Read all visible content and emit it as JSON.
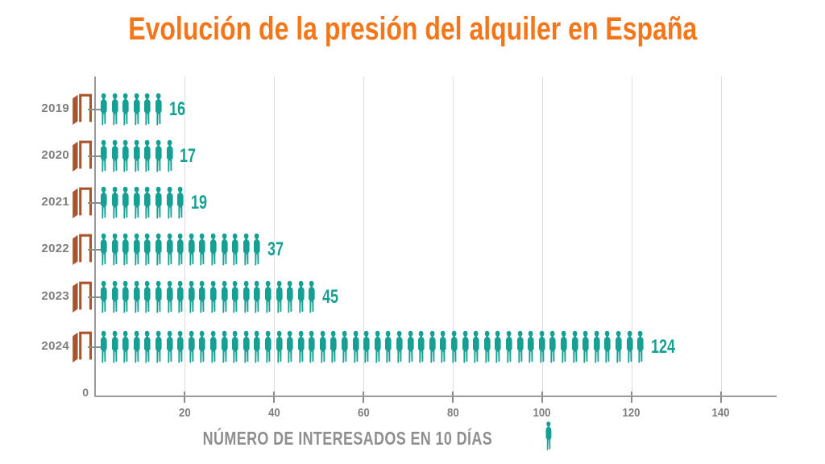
{
  "title": "Evolución de la presión del alquiler en España",
  "chart_data": {
    "type": "bar",
    "subtype": "pictogram_bar_horizontal",
    "title": "Evolución de la presión del alquiler en España",
    "categories": [
      "2019",
      "2020",
      "2021",
      "2022",
      "2023",
      "2024"
    ],
    "values": [
      16,
      17,
      19,
      37,
      45,
      124
    ],
    "icon_counts": [
      6,
      7,
      8,
      15,
      20,
      50
    ],
    "value_labels": [
      "16",
      "17",
      "19",
      "37",
      "45",
      "124"
    ],
    "xlabel": "NÚMERO DE INTERESADOS EN 10 DÍAS",
    "x_ticks": [
      20,
      40,
      60,
      80,
      100,
      120,
      140
    ],
    "zero_label": "0",
    "xlim": [
      0,
      152
    ],
    "grid": true,
    "legend_position": "bottom",
    "bar_icon": "person-silhouette",
    "category_icon": "open-door"
  },
  "colors": {
    "title_orange": "#F3761B",
    "person_teal": "#16A094",
    "door_brown": "#A9532F",
    "axis_gray": "#9A9A9A",
    "tick_gray": "#8C8C8C",
    "grid_gray": "#DEDEDE",
    "label_gray": "#7E7E7E",
    "value_teal": "#16A094",
    "background": "#FFFFFF"
  }
}
